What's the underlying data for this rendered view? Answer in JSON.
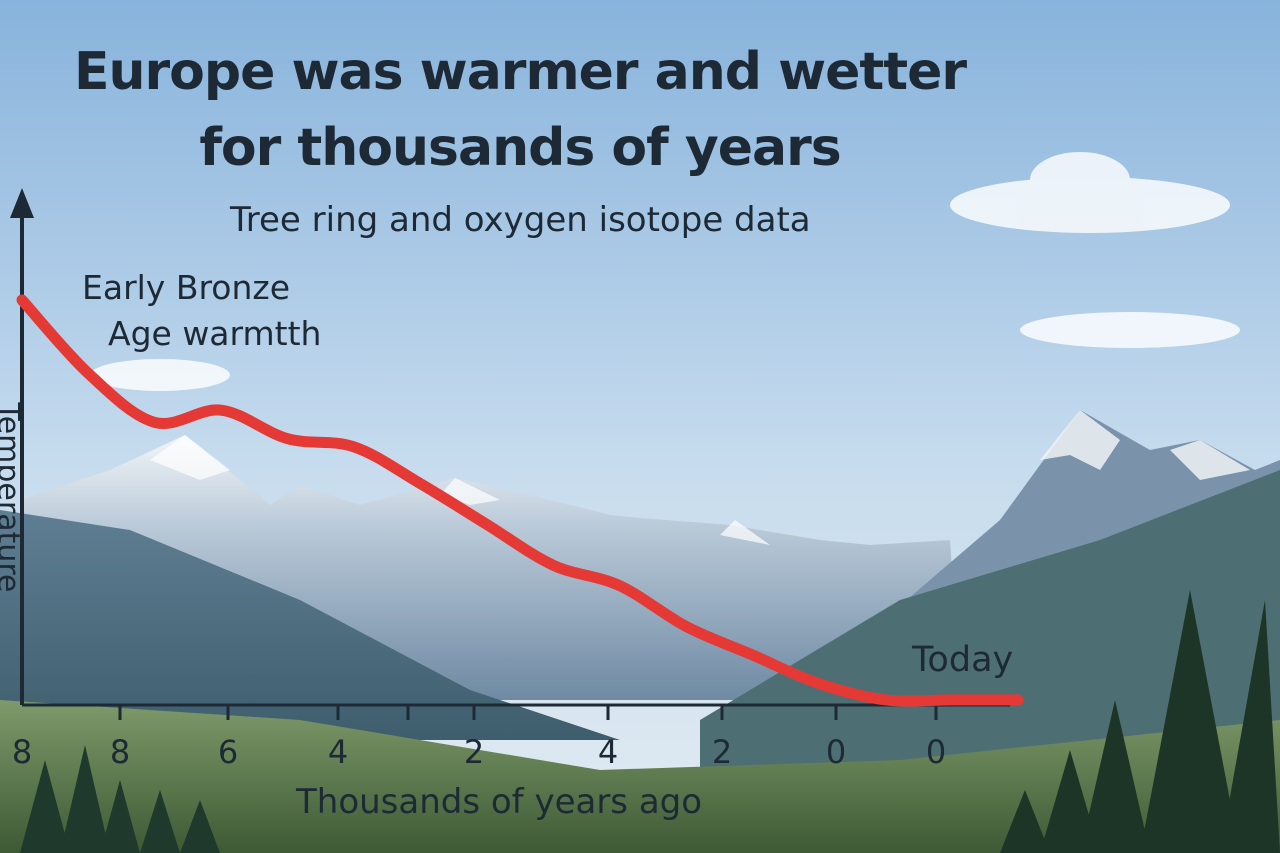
{
  "header": {
    "title_line1": "Europe was warmer and wetter",
    "title_line2": "for thousands of years",
    "subtitle": "Tree ring and oxygen isotope data"
  },
  "colors": {
    "curve": "#e53935",
    "axis": "#1d2a36",
    "text": "#1d2a36",
    "sky_top": "#8fb8e0",
    "sky_bottom": "#dce8f1"
  },
  "chart_data": {
    "type": "line",
    "title": "Europe was warmer and wetter for thousands of years",
    "subtitle": "Tree ring and oxygen isotope data",
    "xlabel": "Thousands of years ago",
    "ylabel": "Temperature",
    "x_tick_labels": [
      "8",
      "8",
      "6",
      "4",
      "2",
      "4",
      "2",
      "0",
      "0"
    ],
    "annotations": [
      {
        "text_line1": "Early Bronze",
        "text_line2": "Age warmtth",
        "near": "curve start"
      },
      {
        "text": "Today",
        "near": "curve end"
      }
    ],
    "series": [
      {
        "name": "",
        "values": [
          1.0,
          0.82,
          0.7,
          0.73,
          0.66,
          0.64,
          0.55,
          0.45,
          0.35,
          0.3,
          0.2,
          0.13,
          0.06,
          0.02,
          0.02,
          0.02
        ]
      }
    ],
    "y_range": [
      0,
      1.0
    ],
    "grid": false,
    "background": "mountain landscape photo"
  }
}
